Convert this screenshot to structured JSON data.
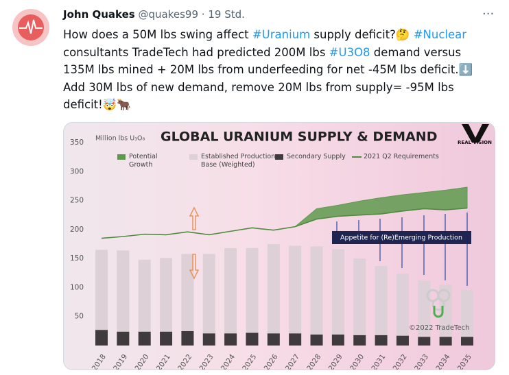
{
  "tweet": {
    "author": {
      "name": "John Quakes",
      "handle": "@quakes99"
    },
    "separator": "·",
    "time": "19 Std.",
    "text_segments": [
      "How does a 50M lbs swing affect ",
      "#Uranium",
      " supply deficit?🤔 ",
      "#Nuclear",
      " consultants TradeTech had predicted 200M lbs ",
      "#U3O8",
      " demand versus 135M lbs mined + 20M lbs from underfeeding for net -45M lbs deficit.⬇️ Add 30M lbs of new demand, remove 20M lbs from supply= -95M lbs deficit!🤯🐂"
    ]
  },
  "chart_data": {
    "type": "bar",
    "title": "GLOBAL URANIUM SUPPLY & DEMAND",
    "y_label": "Million lbs U₃O₈",
    "logo": "REAL VISION",
    "annotations": [
      "Appetite for (Re)Emerging Production",
      "©2022 TradeTech"
    ],
    "categories": [
      "2018",
      "2019",
      "2020",
      "2021",
      "2022",
      "2023",
      "2024",
      "2025",
      "2026",
      "2027",
      "2028",
      "2029",
      "2030",
      "2031",
      "2032",
      "2033",
      "2034",
      "2035"
    ],
    "series": [
      {
        "name": "Potential Growth",
        "type": "area",
        "color": "#5e9a4e",
        "values": [
          null,
          null,
          null,
          null,
          null,
          null,
          null,
          null,
          null,
          205,
          236,
          242,
          249,
          255,
          260,
          264,
          268,
          273
        ]
      },
      {
        "name": "Established Production Base (Weighted)",
        "type": "bar",
        "color": "#ddd0d6",
        "values": [
          138,
          140,
          124,
          127,
          133,
          137,
          147,
          146,
          154,
          151,
          152,
          147,
          132,
          119,
          107,
          97,
          90,
          81
        ]
      },
      {
        "name": "Secondary Supply",
        "type": "bar",
        "color": "#3f3a3c",
        "values": [
          27,
          24,
          24,
          24,
          25,
          21,
          21,
          22,
          21,
          21,
          19,
          19,
          18,
          18,
          17,
          15,
          15,
          15
        ]
      },
      {
        "name": "2021 Q2 Requirements",
        "type": "line",
        "color": "#4f8a3f",
        "values": [
          185,
          188,
          192,
          191,
          196,
          191,
          197,
          203,
          199,
          205,
          218,
          223,
          225,
          227,
          232,
          236,
          234,
          237
        ]
      }
    ],
    "ylim": [
      0,
      350
    ],
    "yticks": [
      50,
      100,
      150,
      200,
      250,
      300,
      350
    ]
  }
}
